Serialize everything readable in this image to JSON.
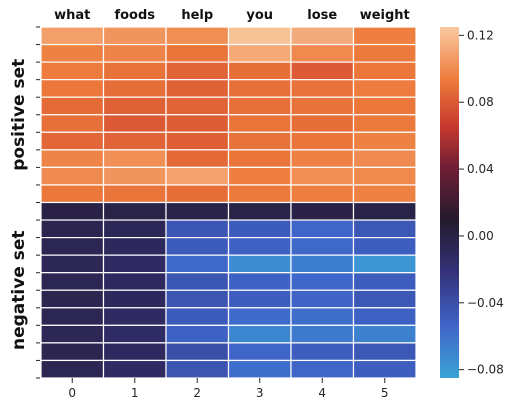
{
  "chart_data": {
    "type": "heatmap",
    "title": "",
    "top_labels": [
      "what",
      "foods",
      "help",
      "you",
      "lose",
      "weight"
    ],
    "x_tick_labels": [
      "0",
      "1",
      "2",
      "3",
      "4",
      "5"
    ],
    "row_groups": [
      {
        "label": "positive set",
        "rows": 10
      },
      {
        "label": "negative set",
        "rows": 10
      }
    ],
    "colorbar": {
      "range": [
        -0.085,
        0.125
      ],
      "ticks": [
        0.12,
        0.08,
        0.04,
        0.0,
        -0.04,
        -0.08
      ],
      "tick_labels": [
        "0.12",
        "0.08",
        "0.04",
        "0.00",
        "−0.04",
        "−0.08"
      ]
    },
    "values": [
      [
        0.108,
        0.104,
        0.101,
        0.122,
        0.113,
        0.095
      ],
      [
        0.096,
        0.097,
        0.091,
        0.112,
        0.099,
        0.093
      ],
      [
        0.094,
        0.09,
        0.084,
        0.088,
        0.08,
        0.092
      ],
      [
        0.092,
        0.088,
        0.083,
        0.089,
        0.09,
        0.094
      ],
      [
        0.087,
        0.083,
        0.084,
        0.089,
        0.09,
        0.092
      ],
      [
        0.089,
        0.08,
        0.081,
        0.091,
        0.088,
        0.093
      ],
      [
        0.085,
        0.084,
        0.082,
        0.09,
        0.091,
        0.096
      ],
      [
        0.097,
        0.102,
        0.086,
        0.091,
        0.096,
        0.1
      ],
      [
        0.1,
        0.104,
        0.109,
        0.095,
        0.101,
        0.099
      ],
      [
        0.092,
        0.091,
        0.088,
        0.093,
        0.095,
        0.096
      ],
      [
        -0.001,
        -0.002,
        -0.003,
        -0.002,
        -0.001,
        -0.002
      ],
      [
        -0.005,
        -0.008,
        -0.045,
        -0.048,
        -0.054,
        -0.046
      ],
      [
        -0.006,
        -0.01,
        -0.048,
        -0.052,
        -0.056,
        -0.05
      ],
      [
        -0.007,
        -0.012,
        -0.056,
        -0.074,
        -0.066,
        -0.078
      ],
      [
        -0.006,
        -0.011,
        -0.045,
        -0.052,
        -0.055,
        -0.049
      ],
      [
        -0.005,
        -0.01,
        -0.044,
        -0.05,
        -0.053,
        -0.046
      ],
      [
        -0.006,
        -0.012,
        -0.048,
        -0.057,
        -0.058,
        -0.052
      ],
      [
        -0.007,
        -0.013,
        -0.052,
        -0.07,
        -0.064,
        -0.068
      ],
      [
        -0.005,
        -0.011,
        -0.04,
        -0.054,
        -0.05,
        -0.046
      ],
      [
        -0.006,
        -0.012,
        -0.044,
        -0.058,
        -0.054,
        -0.05
      ]
    ]
  }
}
